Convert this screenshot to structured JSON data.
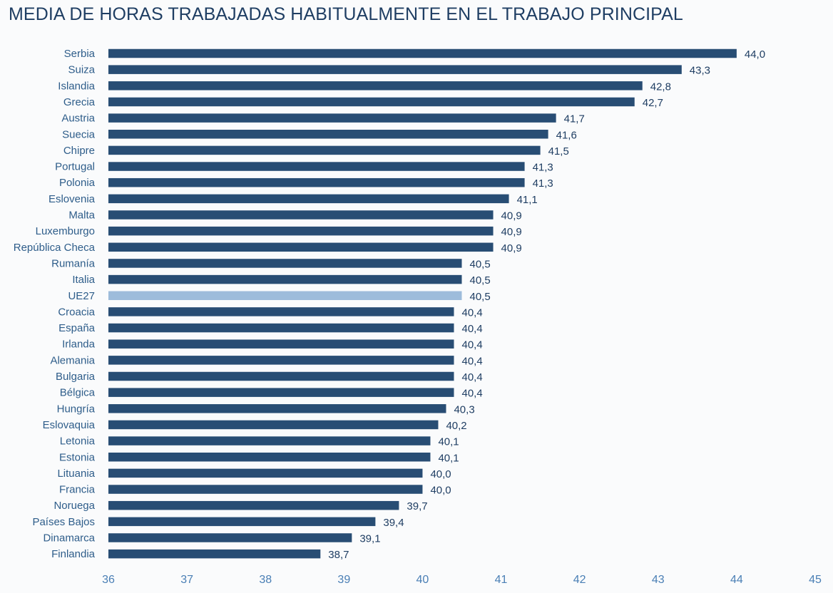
{
  "chart_data": {
    "type": "bar",
    "orientation": "horizontal",
    "title": "MEDIA DE HORAS TRABAJADAS HABITUALMENTE EN EL TRABAJO PRINCIPAL",
    "xlim": [
      36,
      45
    ],
    "x_ticks": [
      "36",
      "37",
      "38",
      "39",
      "40",
      "41",
      "42",
      "43",
      "44",
      "45"
    ],
    "grid": false,
    "legend": "none",
    "highlight_category": "UE27",
    "colors": {
      "bar": "#284d74",
      "highlight": "#9dbcdb",
      "category_label": "#2e5d8a",
      "value_label": "#1f3e63",
      "tick_label": "#4a7fb5"
    },
    "categories": [
      "Serbia",
      "Suiza",
      "Islandia",
      "Grecia",
      "Austria",
      "Suecia",
      "Chipre",
      "Portugal",
      "Polonia",
      "Eslovenia",
      "Malta",
      "Luxemburgo",
      "República Checa",
      "Rumanía",
      "Italia",
      "UE27",
      "Croacia",
      "España",
      "Irlanda",
      "Alemania",
      "Bulgaria",
      "Bélgica",
      "Hungría",
      "Eslovaquia",
      "Letonia",
      "Estonia",
      "Lituania",
      "Francia",
      "Noruega",
      "Países Bajos",
      "Dinamarca",
      "Finlandia"
    ],
    "values": [
      44.0,
      43.3,
      42.8,
      42.7,
      41.7,
      41.6,
      41.5,
      41.3,
      41.3,
      41.1,
      40.9,
      40.9,
      40.9,
      40.5,
      40.5,
      40.5,
      40.4,
      40.4,
      40.4,
      40.4,
      40.4,
      40.4,
      40.3,
      40.2,
      40.1,
      40.1,
      40.0,
      40.0,
      39.7,
      39.4,
      39.1,
      38.7
    ],
    "value_labels": [
      "44,0",
      "43,3",
      "42,8",
      "42,7",
      "41,7",
      "41,6",
      "41,5",
      "41,3",
      "41,3",
      "41,1",
      "40,9",
      "40,9",
      "40,9",
      "40,5",
      "40,5",
      "40,5",
      "40,4",
      "40,4",
      "40,4",
      "40,4",
      "40,4",
      "40,4",
      "40,3",
      "40,2",
      "40,1",
      "40,1",
      "40,0",
      "40,0",
      "39,7",
      "39,4",
      "39,1",
      "38,7"
    ]
  }
}
